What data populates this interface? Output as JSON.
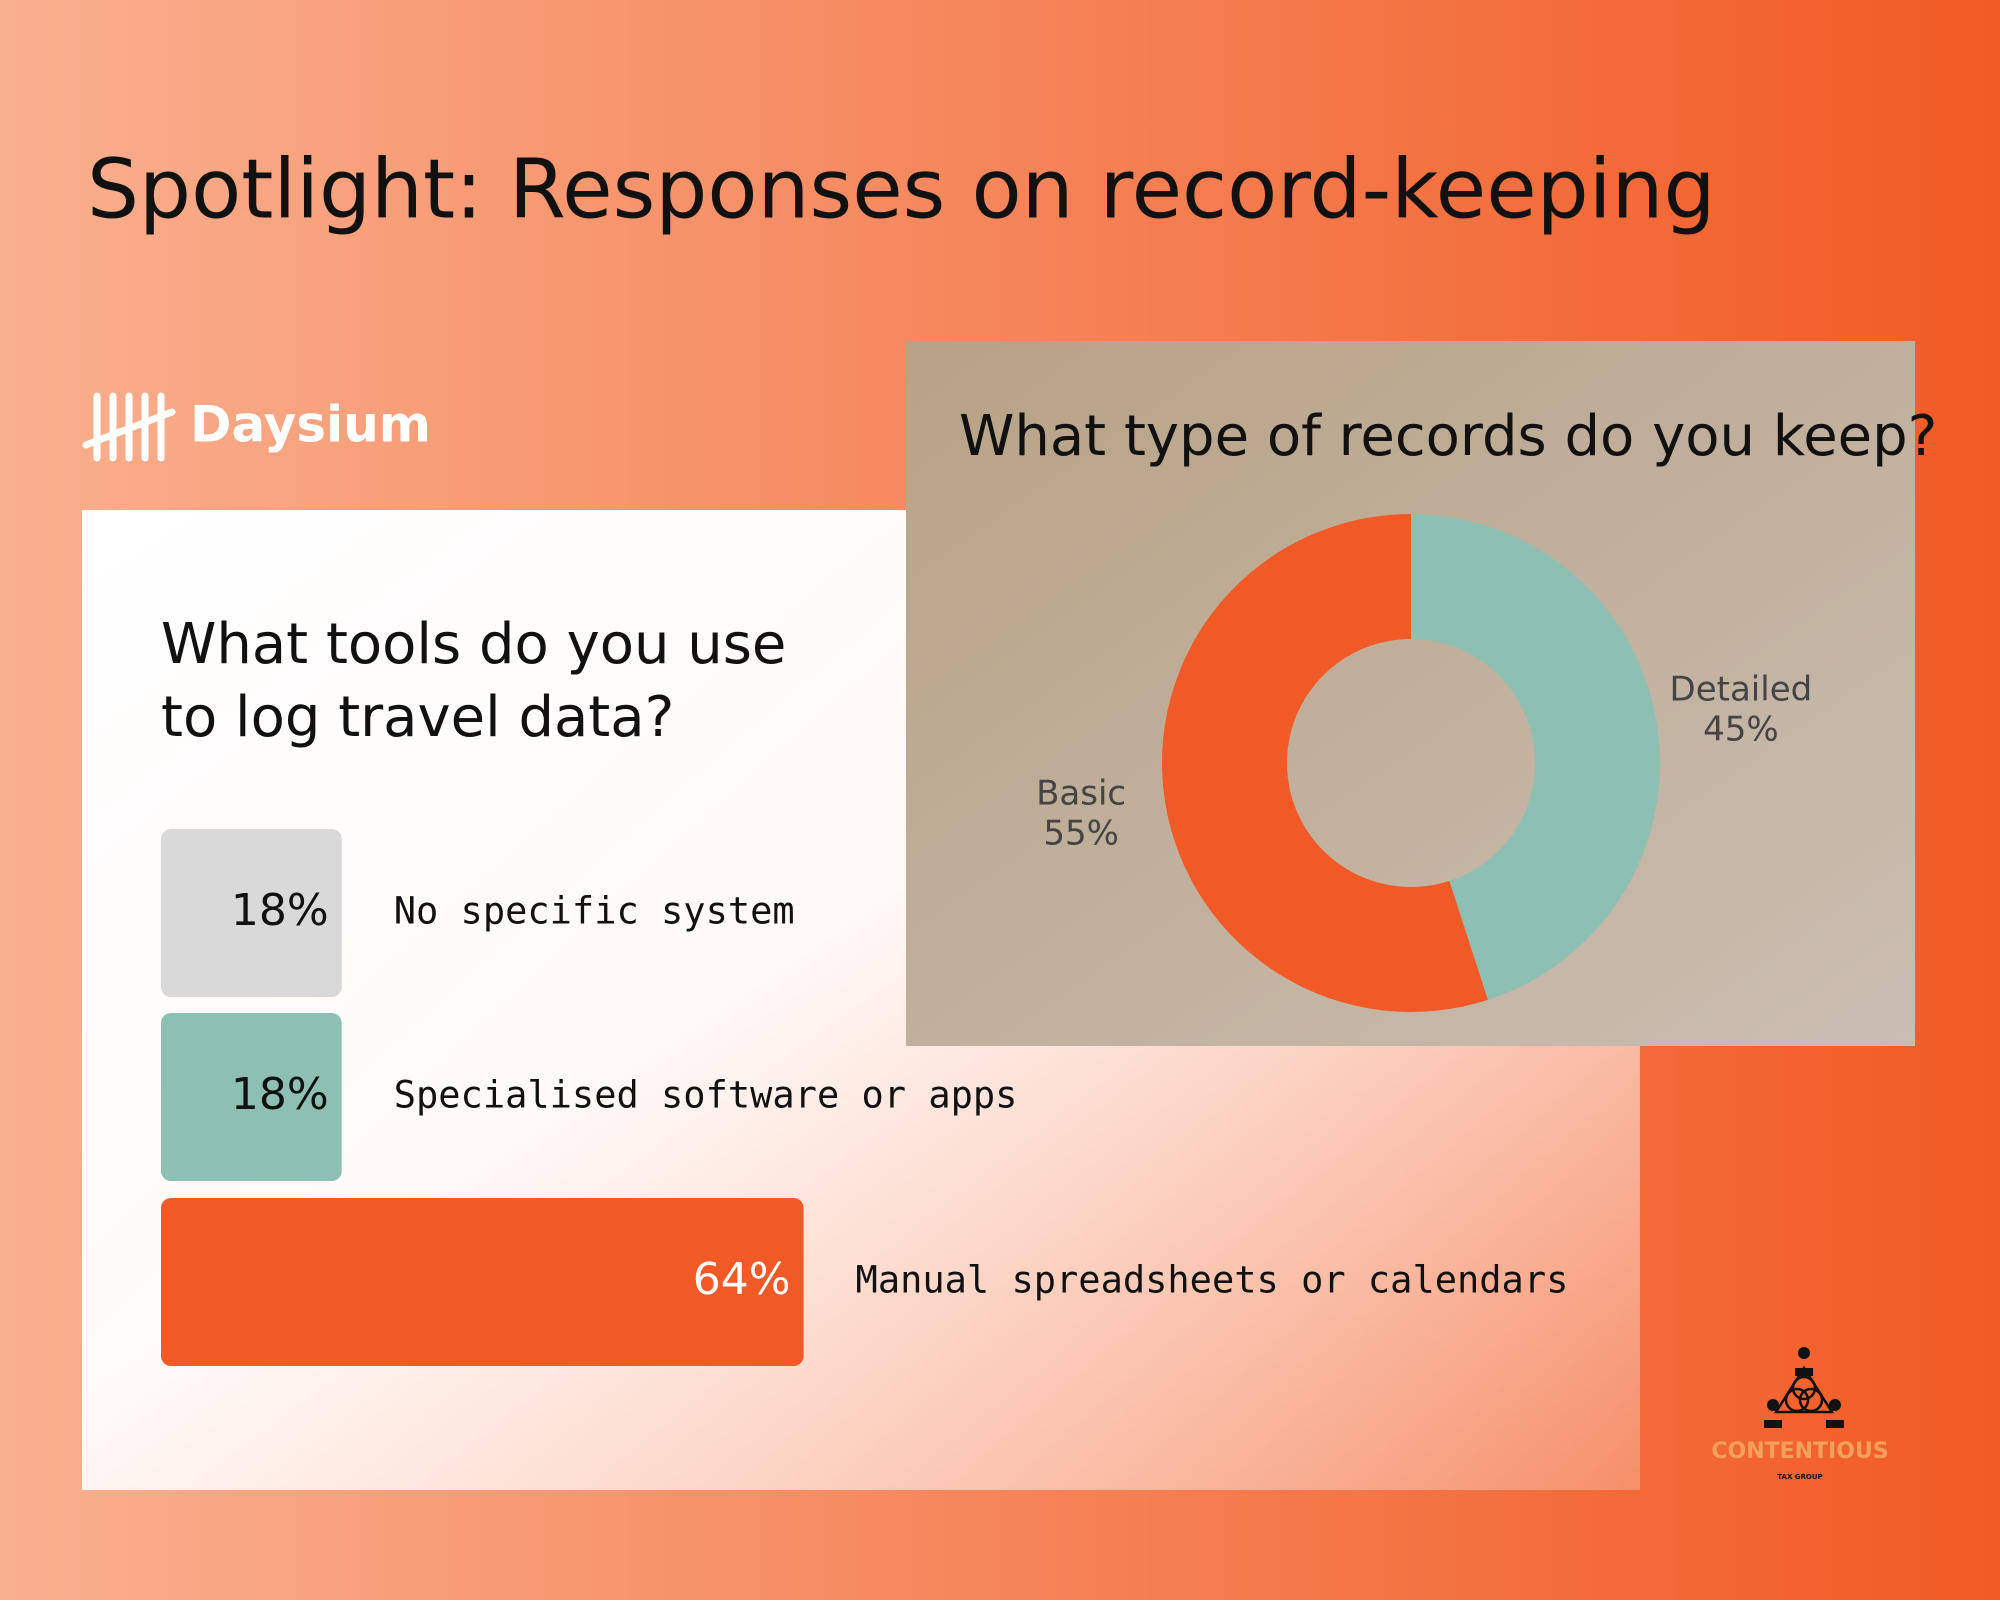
{
  "title": "Spotlight: Responses on record-keeping",
  "brand": "Daysium",
  "partner": {
    "name": "CONTENTIOUS",
    "subtitle": "TAX GROUP"
  },
  "chart_data": [
    {
      "type": "bar",
      "title": "What tools do you use to log travel data?",
      "categories": [
        "No specific system",
        "Specialised software or apps",
        "Manual spreadsheets or calendars"
      ],
      "values": [
        18,
        18,
        64
      ],
      "value_labels": [
        "18%",
        "18%",
        "64%"
      ],
      "colors": [
        "#d9d9d9",
        "#8ebfb3",
        "#f15a27"
      ]
    },
    {
      "type": "pie",
      "title": "What type of records do you keep?",
      "categories": [
        "Detailed",
        "Basic"
      ],
      "values": [
        45,
        55
      ],
      "value_labels": [
        "45%",
        "55%"
      ],
      "colors": [
        "#8ebfb3",
        "#f15a27"
      ]
    }
  ]
}
